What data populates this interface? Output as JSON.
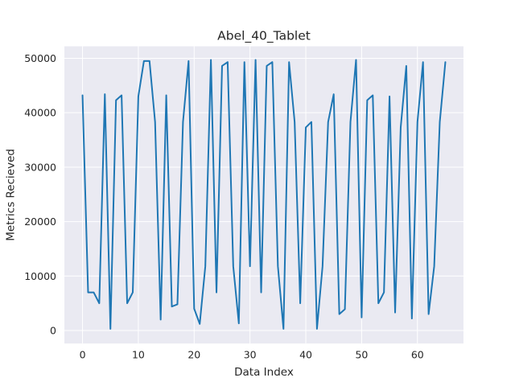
{
  "chart_data": {
    "type": "line",
    "title": "Abel_40_Tablet",
    "xlabel": "Data Index",
    "ylabel": "Metrics Recieved",
    "xlim": [
      -3.25,
      68.25
    ],
    "ylim": [
      -2400,
      52200
    ],
    "xticks": [
      0,
      10,
      20,
      30,
      40,
      50,
      60
    ],
    "yticks": [
      0,
      10000,
      20000,
      30000,
      40000,
      50000
    ],
    "grid": true,
    "line_color": "#1f77b4",
    "background_color": "#eaeaf2",
    "grid_color": "#ffffff",
    "series": [
      {
        "x": [
          0,
          1,
          2,
          3,
          4,
          5,
          6,
          7,
          8,
          9,
          10,
          11,
          12,
          13,
          14,
          15,
          16,
          17,
          18,
          19,
          20,
          21,
          22,
          23,
          24,
          25,
          26,
          27,
          28,
          29,
          30,
          31,
          32,
          33,
          34,
          35,
          36,
          37,
          38,
          39,
          40,
          41,
          42,
          43,
          44,
          45,
          46,
          47,
          48,
          49,
          50,
          51,
          52,
          53,
          54,
          55,
          56,
          57,
          58,
          59,
          60,
          61,
          62,
          63,
          64,
          65
        ],
        "values": [
          43200,
          7000,
          7000,
          5000,
          43400,
          300,
          42300,
          43200,
          5000,
          7000,
          43000,
          49500,
          49500,
          38300,
          2000,
          43200,
          4400,
          4800,
          38300,
          49500,
          4000,
          1200,
          11800,
          49700,
          7000,
          48600,
          49300,
          11800,
          1300,
          49300,
          11800,
          49700,
          7000,
          48600,
          49300,
          11800,
          300,
          49300,
          38300,
          5000,
          37300,
          38300,
          300,
          11800,
          38300,
          43400,
          3000,
          3900,
          38300,
          49700,
          2400,
          42300,
          43200,
          5000,
          7000,
          43000,
          3300,
          37300,
          48600,
          2200,
          38300,
          49300,
          3000,
          11800,
          38300,
          49300
        ]
      }
    ]
  }
}
